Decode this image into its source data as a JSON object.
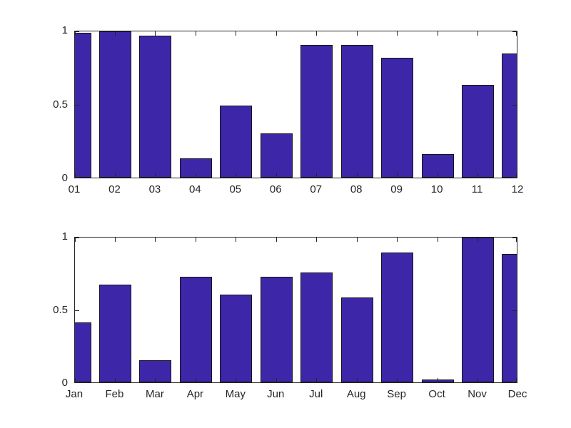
{
  "figure": {
    "background": "#ffffff",
    "axis_color": "#262626",
    "tick_label_color": "#262626"
  },
  "chart_data": [
    {
      "type": "bar",
      "position": "top",
      "categories": [
        "01",
        "02",
        "03",
        "04",
        "05",
        "06",
        "07",
        "08",
        "09",
        "10",
        "11",
        "12"
      ],
      "values": [
        0.98,
        0.99,
        0.96,
        0.13,
        0.49,
        0.3,
        0.9,
        0.9,
        0.81,
        0.16,
        0.63,
        0.84
      ],
      "title": "",
      "xlabel": "",
      "ylabel": "",
      "ylim": [
        0,
        1
      ],
      "yticks": [
        0,
        0.5,
        1
      ],
      "ytick_labels": [
        "0",
        "0.5",
        "1"
      ],
      "xlim_clipped_to_first_last_tick": true,
      "bar_width_fraction": 0.8,
      "grid": false,
      "legend": null,
      "box": true,
      "tick_direction": "in",
      "bar_color": "#3E26A8",
      "bar_edge_color": "#151515",
      "axis_color": "#262626"
    },
    {
      "type": "bar",
      "position": "bottom",
      "categories": [
        "Jan",
        "Feb",
        "Mar",
        "Apr",
        "May",
        "Jun",
        "Jul",
        "Aug",
        "Sep",
        "Oct",
        "Nov",
        "Dec"
      ],
      "values": [
        0.41,
        0.67,
        0.15,
        0.72,
        0.6,
        0.72,
        0.75,
        0.58,
        0.89,
        0.02,
        0.99,
        0.88
      ],
      "title": "",
      "xlabel": "",
      "ylabel": "",
      "ylim": [
        0,
        1
      ],
      "yticks": [
        0,
        0.5,
        1
      ],
      "ytick_labels": [
        "0",
        "0.5",
        "1"
      ],
      "xlim_clipped_to_first_last_tick": true,
      "bar_width_fraction": 0.8,
      "grid": false,
      "legend": null,
      "box": true,
      "tick_direction": "in",
      "bar_color": "#3E26A8",
      "bar_edge_color": "#151515",
      "axis_color": "#262626"
    }
  ]
}
